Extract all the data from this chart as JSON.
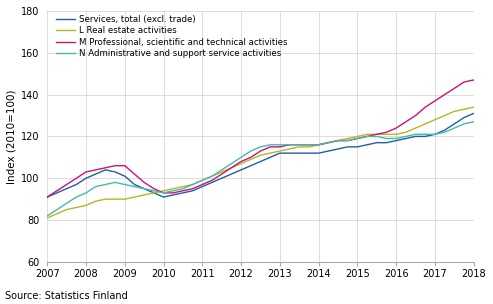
{
  "title": "",
  "ylabel": "Index (2010=100)",
  "source": "Source: Statistics Finland",
  "ylim": [
    60,
    180
  ],
  "yticks": [
    60,
    80,
    100,
    120,
    140,
    160,
    180
  ],
  "xlim": [
    2007.0,
    2018.0
  ],
  "xticks": [
    2007,
    2008,
    2009,
    2010,
    2011,
    2012,
    2013,
    2014,
    2015,
    2016,
    2017,
    2018
  ],
  "series": {
    "Services, total (excl. trade)": {
      "color": "#1f5fa6",
      "data_x": [
        2007.0,
        2007.25,
        2007.5,
        2007.75,
        2008.0,
        2008.25,
        2008.5,
        2008.75,
        2009.0,
        2009.25,
        2009.5,
        2009.75,
        2010.0,
        2010.25,
        2010.5,
        2010.75,
        2011.0,
        2011.25,
        2011.5,
        2011.75,
        2012.0,
        2012.25,
        2012.5,
        2012.75,
        2013.0,
        2013.25,
        2013.5,
        2013.75,
        2014.0,
        2014.25,
        2014.5,
        2014.75,
        2015.0,
        2015.25,
        2015.5,
        2015.75,
        2016.0,
        2016.25,
        2016.5,
        2016.75,
        2017.0,
        2017.25,
        2017.5,
        2017.75,
        2018.0
      ],
      "data_y": [
        91,
        93,
        95,
        97,
        100,
        102,
        104,
        103,
        101,
        97,
        95,
        93,
        91,
        92,
        93,
        94,
        96,
        98,
        100,
        102,
        104,
        106,
        108,
        110,
        112,
        112,
        112,
        112,
        112,
        113,
        114,
        115,
        115,
        116,
        117,
        117,
        118,
        119,
        120,
        120,
        121,
        123,
        126,
        129,
        131
      ]
    },
    "L Real estate activities": {
      "color": "#b5b820",
      "data_x": [
        2007.0,
        2007.25,
        2007.5,
        2007.75,
        2008.0,
        2008.25,
        2008.5,
        2008.75,
        2009.0,
        2009.25,
        2009.5,
        2009.75,
        2010.0,
        2010.25,
        2010.5,
        2010.75,
        2011.0,
        2011.25,
        2011.5,
        2011.75,
        2012.0,
        2012.25,
        2012.5,
        2012.75,
        2013.0,
        2013.25,
        2013.5,
        2013.75,
        2014.0,
        2014.25,
        2014.5,
        2014.75,
        2015.0,
        2015.25,
        2015.5,
        2015.75,
        2016.0,
        2016.25,
        2016.5,
        2016.75,
        2017.0,
        2017.25,
        2017.5,
        2017.75,
        2018.0
      ],
      "data_y": [
        81,
        83,
        85,
        86,
        87,
        89,
        90,
        90,
        90,
        91,
        92,
        93,
        94,
        95,
        96,
        97,
        99,
        101,
        103,
        105,
        107,
        109,
        111,
        112,
        113,
        114,
        115,
        115,
        116,
        117,
        118,
        119,
        120,
        121,
        121,
        121,
        121,
        122,
        124,
        126,
        128,
        130,
        132,
        133,
        134
      ]
    },
    "M Professional, scientific and technical activities": {
      "color": "#cc1177",
      "data_x": [
        2007.0,
        2007.25,
        2007.5,
        2007.75,
        2008.0,
        2008.25,
        2008.5,
        2008.75,
        2009.0,
        2009.25,
        2009.5,
        2009.75,
        2010.0,
        2010.25,
        2010.5,
        2010.75,
        2011.0,
        2011.25,
        2011.5,
        2011.75,
        2012.0,
        2012.25,
        2012.5,
        2012.75,
        2013.0,
        2013.25,
        2013.5,
        2013.75,
        2014.0,
        2014.25,
        2014.5,
        2014.75,
        2015.0,
        2015.25,
        2015.5,
        2015.75,
        2016.0,
        2016.25,
        2016.5,
        2016.75,
        2017.0,
        2017.25,
        2017.5,
        2017.75,
        2018.0
      ],
      "data_y": [
        91,
        94,
        97,
        100,
        103,
        104,
        105,
        106,
        106,
        102,
        98,
        95,
        93,
        93,
        94,
        95,
        97,
        99,
        102,
        105,
        108,
        110,
        113,
        115,
        115,
        116,
        116,
        116,
        116,
        117,
        118,
        118,
        119,
        120,
        121,
        122,
        124,
        127,
        130,
        134,
        137,
        140,
        143,
        146,
        147
      ]
    },
    "N Administrative and support service activities": {
      "color": "#44bbaa",
      "data_x": [
        2007.0,
        2007.25,
        2007.5,
        2007.75,
        2008.0,
        2008.25,
        2008.5,
        2008.75,
        2009.0,
        2009.25,
        2009.5,
        2009.75,
        2010.0,
        2010.25,
        2010.5,
        2010.75,
        2011.0,
        2011.25,
        2011.5,
        2011.75,
        2012.0,
        2012.25,
        2012.5,
        2012.75,
        2013.0,
        2013.25,
        2013.5,
        2013.75,
        2014.0,
        2014.25,
        2014.5,
        2014.75,
        2015.0,
        2015.25,
        2015.5,
        2015.75,
        2016.0,
        2016.25,
        2016.5,
        2016.75,
        2017.0,
        2017.25,
        2017.5,
        2017.75,
        2018.0
      ],
      "data_y": [
        82,
        85,
        88,
        91,
        93,
        96,
        97,
        98,
        97,
        96,
        95,
        94,
        93,
        94,
        95,
        97,
        99,
        101,
        104,
        107,
        110,
        113,
        115,
        116,
        116,
        116,
        116,
        116,
        116,
        117,
        118,
        118,
        119,
        120,
        120,
        119,
        119,
        120,
        121,
        121,
        121,
        122,
        124,
        126,
        127
      ]
    }
  },
  "legend_order": [
    "Services, total (excl. trade)",
    "L Real estate activities",
    "M Professional, scientific and technical activities",
    "N Administrative and support service activities"
  ]
}
